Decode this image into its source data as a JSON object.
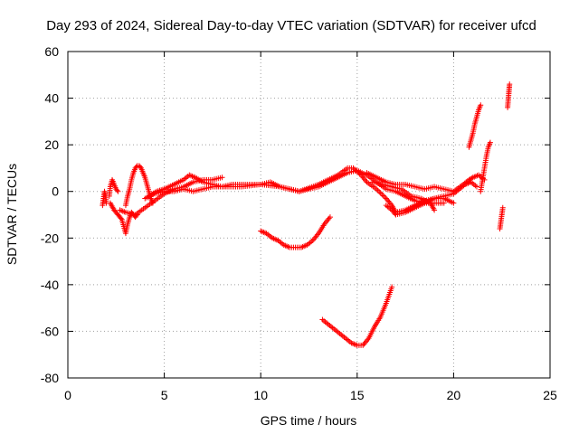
{
  "chart_data": {
    "type": "scatter",
    "title": "Day 293 of 2024, Sidereal Day-to-day VTEC variation (SDTVAR) for receiver ufcd",
    "xlabel": "GPS time / hours",
    "ylabel": "SDTVAR / TECUs",
    "xlim": [
      0,
      25
    ],
    "ylim": [
      -80,
      60
    ],
    "xticks": [
      0,
      5,
      10,
      15,
      20,
      25
    ],
    "yticks": [
      -80,
      -60,
      -40,
      -20,
      0,
      20,
      40,
      60
    ],
    "grid": true,
    "marker": "+",
    "color": "#ff0000",
    "segments": [
      {
        "name": "early-spike-1",
        "points": [
          [
            1.8,
            -6
          ],
          [
            1.85,
            -3
          ],
          [
            1.9,
            0
          ],
          [
            1.95,
            -2
          ],
          [
            2.0,
            -5
          ]
        ]
      },
      {
        "name": "early-spike-2",
        "points": [
          [
            2.15,
            -2
          ],
          [
            2.2,
            2
          ],
          [
            2.3,
            5
          ],
          [
            2.4,
            3
          ],
          [
            2.5,
            1
          ],
          [
            2.6,
            0
          ]
        ]
      },
      {
        "name": "early-dip",
        "points": [
          [
            2.2,
            -5
          ],
          [
            2.4,
            -8
          ],
          [
            2.6,
            -10
          ],
          [
            2.8,
            -12
          ],
          [
            2.9,
            -15
          ],
          [
            3.0,
            -18
          ],
          [
            3.1,
            -14
          ],
          [
            3.2,
            -11
          ],
          [
            3.3,
            -9
          ],
          [
            3.4,
            -10
          ],
          [
            3.5,
            -11
          ],
          [
            3.6,
            -10
          ]
        ]
      },
      {
        "name": "early-bump",
        "points": [
          [
            3.0,
            -6
          ],
          [
            3.1,
            -2
          ],
          [
            3.2,
            1
          ],
          [
            3.3,
            5
          ],
          [
            3.4,
            8
          ],
          [
            3.5,
            10
          ],
          [
            3.6,
            11
          ],
          [
            3.7,
            11
          ],
          [
            3.8,
            10
          ],
          [
            3.9,
            8
          ],
          [
            4.0,
            6
          ],
          [
            4.1,
            3
          ],
          [
            4.2,
            0
          ],
          [
            4.3,
            -3
          ],
          [
            4.4,
            -5
          ]
        ]
      },
      {
        "name": "track-a",
        "points": [
          [
            2.7,
            -8
          ],
          [
            3.0,
            -9
          ],
          [
            3.5,
            -10
          ],
          [
            4.0,
            -7
          ],
          [
            4.5,
            -4
          ],
          [
            5.0,
            -1
          ],
          [
            5.5,
            1
          ],
          [
            6.0,
            2
          ],
          [
            6.5,
            4
          ],
          [
            7.0,
            5
          ],
          [
            7.5,
            5
          ],
          [
            8.0,
            6
          ]
        ]
      },
      {
        "name": "track-b",
        "points": [
          [
            4.2,
            -2
          ],
          [
            4.6,
            0
          ],
          [
            5.0,
            1
          ],
          [
            5.5,
            3
          ],
          [
            6.0,
            5
          ],
          [
            6.3,
            7
          ],
          [
            6.6,
            6
          ],
          [
            7.0,
            4
          ],
          [
            7.5,
            3
          ],
          [
            8.0,
            2
          ],
          [
            8.5,
            3
          ],
          [
            9.0,
            3
          ],
          [
            9.5,
            3
          ],
          [
            10.0,
            3
          ],
          [
            10.5,
            4
          ],
          [
            11.0,
            2
          ],
          [
            11.5,
            1
          ],
          [
            12.0,
            0
          ],
          [
            12.5,
            1
          ],
          [
            13.0,
            2
          ],
          [
            13.5,
            4
          ],
          [
            14.0,
            6
          ],
          [
            14.5,
            8
          ],
          [
            15.0,
            9
          ],
          [
            15.5,
            7
          ],
          [
            16.0,
            4
          ],
          [
            16.5,
            1
          ],
          [
            17.0,
            0
          ],
          [
            17.5,
            -2
          ],
          [
            18.0,
            -4
          ],
          [
            18.5,
            -5
          ],
          [
            19.0,
            -5
          ],
          [
            19.5,
            -5
          ]
        ]
      },
      {
        "name": "track-c",
        "points": [
          [
            4.0,
            -3
          ],
          [
            4.5,
            -1
          ],
          [
            5.0,
            0
          ],
          [
            5.5,
            0
          ],
          [
            6.0,
            1
          ],
          [
            6.5,
            0
          ],
          [
            7.0,
            1
          ],
          [
            7.5,
            2
          ],
          [
            8.0,
            2
          ],
          [
            9.0,
            2
          ],
          [
            10.0,
            3
          ],
          [
            11.0,
            2
          ],
          [
            12.0,
            0
          ],
          [
            13.0,
            3
          ],
          [
            13.5,
            5
          ],
          [
            14.0,
            7
          ],
          [
            14.5,
            10
          ],
          [
            14.8,
            10
          ],
          [
            15.2,
            7
          ],
          [
            15.5,
            4
          ],
          [
            16.0,
            1
          ],
          [
            16.5,
            -3
          ],
          [
            16.8,
            -6
          ],
          [
            17.0,
            -9
          ],
          [
            17.5,
            -8
          ],
          [
            18.0,
            -6
          ],
          [
            18.5,
            -4
          ],
          [
            19.0,
            -3
          ],
          [
            19.5,
            -3
          ],
          [
            20.0,
            -5
          ]
        ]
      },
      {
        "name": "track-d",
        "points": [
          [
            15.5,
            8
          ],
          [
            16.0,
            6
          ],
          [
            16.5,
            4
          ],
          [
            17.0,
            3
          ],
          [
            17.5,
            3
          ],
          [
            18.0,
            2
          ],
          [
            18.5,
            1
          ],
          [
            19.0,
            2
          ],
          [
            19.5,
            1
          ],
          [
            20.0,
            0
          ],
          [
            20.5,
            3
          ],
          [
            20.8,
            5
          ],
          [
            21.0,
            6
          ],
          [
            21.3,
            7
          ],
          [
            21.6,
            5
          ]
        ]
      },
      {
        "name": "track-e",
        "points": [
          [
            15.8,
            4
          ],
          [
            16.3,
            3
          ],
          [
            16.8,
            2
          ],
          [
            17.3,
            1
          ],
          [
            17.8,
            -2
          ],
          [
            18.3,
            -3
          ],
          [
            18.8,
            -5
          ],
          [
            19.0,
            -8
          ]
        ]
      },
      {
        "name": "track-f",
        "points": [
          [
            16.5,
            -6
          ],
          [
            16.8,
            -8
          ],
          [
            17.0,
            -10
          ],
          [
            17.5,
            -9
          ],
          [
            18.0,
            -7
          ],
          [
            18.5,
            -5
          ],
          [
            19.0,
            -3
          ],
          [
            19.5,
            -2
          ],
          [
            20.0,
            -1
          ],
          [
            20.3,
            1
          ],
          [
            20.6,
            3
          ],
          [
            20.9,
            4
          ],
          [
            21.2,
            2
          ]
        ]
      },
      {
        "name": "dip-10-13",
        "points": [
          [
            10.0,
            -17
          ],
          [
            10.3,
            -18
          ],
          [
            10.6,
            -20
          ],
          [
            10.9,
            -21
          ],
          [
            11.2,
            -23
          ],
          [
            11.5,
            -24
          ],
          [
            11.8,
            -24
          ],
          [
            12.1,
            -24
          ],
          [
            12.4,
            -23
          ],
          [
            12.7,
            -21
          ],
          [
            13.0,
            -18
          ],
          [
            13.3,
            -14
          ],
          [
            13.6,
            -11
          ]
        ]
      },
      {
        "name": "dip-13-17",
        "points": [
          [
            13.2,
            -55
          ],
          [
            13.5,
            -57
          ],
          [
            13.8,
            -59
          ],
          [
            14.1,
            -61
          ],
          [
            14.4,
            -63
          ],
          [
            14.7,
            -65
          ],
          [
            15.0,
            -66
          ],
          [
            15.3,
            -66
          ],
          [
            15.6,
            -63
          ],
          [
            15.9,
            -58
          ],
          [
            16.2,
            -54
          ],
          [
            16.5,
            -48
          ],
          [
            16.8,
            -41
          ]
        ]
      },
      {
        "name": "late-rise",
        "points": [
          [
            20.8,
            19
          ],
          [
            20.9,
            22
          ],
          [
            21.0,
            25
          ],
          [
            21.1,
            29
          ],
          [
            21.2,
            32
          ],
          [
            21.3,
            35
          ],
          [
            21.4,
            37
          ]
        ]
      },
      {
        "name": "late-climb",
        "points": [
          [
            21.4,
            0
          ],
          [
            21.5,
            5
          ],
          [
            21.6,
            10
          ],
          [
            21.7,
            15
          ],
          [
            21.8,
            19
          ],
          [
            21.9,
            21
          ]
        ]
      },
      {
        "name": "late-neg",
        "points": [
          [
            22.4,
            -16
          ],
          [
            22.45,
            -13
          ],
          [
            22.5,
            -10
          ],
          [
            22.55,
            -7
          ]
        ]
      },
      {
        "name": "late-high",
        "points": [
          [
            22.8,
            36
          ],
          [
            22.83,
            39
          ],
          [
            22.86,
            42
          ],
          [
            22.88,
            44
          ],
          [
            22.9,
            46
          ]
        ]
      }
    ]
  }
}
